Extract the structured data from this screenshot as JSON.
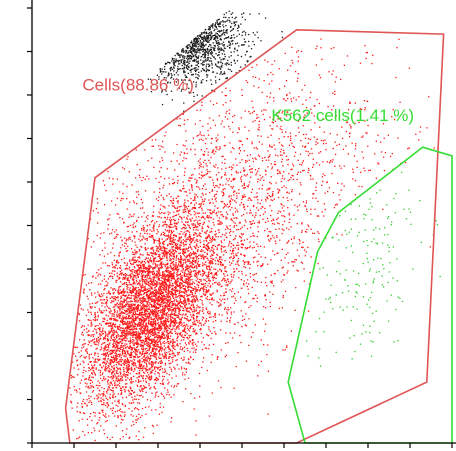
{
  "chart_data": {
    "type": "scatter",
    "title": "",
    "xlabel": "",
    "ylabel": "",
    "xlim": [
      0,
      100
    ],
    "ylim": [
      0,
      100
    ],
    "grid": false,
    "colors": {
      "background_events": "#1a1a1a",
      "cells": "#ff1a1a",
      "k562": "#2ecc2e",
      "axis": "#000000"
    },
    "gates": [
      {
        "name": "cells-gate",
        "label": "Cells(88.86 %)",
        "percent": 88.86,
        "color": "#e05555",
        "label_color": "#e05555",
        "label_at": [
          12,
          81
        ],
        "polygon": [
          [
            15,
            61
          ],
          [
            63,
            95
          ],
          [
            98,
            94
          ],
          [
            94,
            14
          ],
          [
            63,
            0
          ],
          [
            9,
            0
          ],
          [
            8,
            8
          ]
        ]
      },
      {
        "name": "k562-gate",
        "label": "K562 cells(1.41 %)",
        "percent": 1.41,
        "color": "#33dd33",
        "label_color": "#33dd33",
        "label_at": [
          57,
          74
        ],
        "polygon": [
          [
            93,
            68
          ],
          [
            100,
            66
          ],
          [
            100,
            0
          ],
          [
            65,
            0
          ],
          [
            61,
            14
          ],
          [
            68,
            44
          ],
          [
            73,
            53
          ]
        ]
      }
    ],
    "x_ticks": [
      0,
      10,
      20,
      30,
      40,
      50,
      60,
      70,
      80,
      90,
      100
    ],
    "y_ticks": [
      0,
      10,
      20,
      30,
      40,
      50,
      60,
      70,
      80,
      90,
      100
    ],
    "populations": [
      {
        "name": "debris",
        "color": "#1a1a1a",
        "count": 900,
        "cx": 38,
        "cy": 93,
        "sx": 6,
        "sy": 5,
        "rho": 0,
        "band": [
          18,
          55,
          70,
          100
        ]
      },
      {
        "name": "cells-core",
        "color": "#ff1a1a",
        "count": 5200,
        "cx": 28,
        "cy": 30,
        "sx": 8,
        "sy": 11,
        "rho": 0.55
      },
      {
        "name": "cells-spread",
        "color": "#ff1a1a",
        "count": 2300,
        "cx": 45,
        "cy": 52,
        "sx": 18,
        "sy": 18,
        "rho": 0.45
      },
      {
        "name": "k562",
        "color": "#2ecc2e",
        "count": 170,
        "cx": 78,
        "cy": 42,
        "sx": 7,
        "sy": 12,
        "rho": 0.3
      }
    ]
  }
}
